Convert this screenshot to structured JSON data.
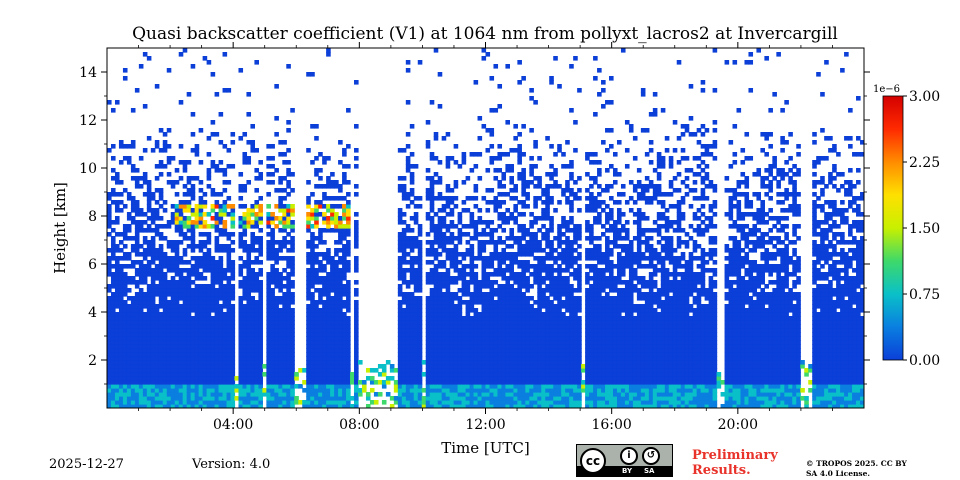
{
  "chart_data": {
    "type": "heatmap",
    "title": "Quasi backscatter coefficient (V1) at 1064 nm from pollyxt_lacros2 at Invercargill",
    "xlabel": "Time [UTC]",
    "ylabel": "Height [km]",
    "xlim_hours": [
      0,
      24
    ],
    "ylim_km": [
      0,
      15
    ],
    "x_ticks": [
      {
        "value": 4,
        "label": "04:00"
      },
      {
        "value": 8,
        "label": "08:00"
      },
      {
        "value": 12,
        "label": "12:00"
      },
      {
        "value": 16,
        "label": "16:00"
      },
      {
        "value": 20,
        "label": "20:00"
      }
    ],
    "y_ticks": [
      {
        "value": 2,
        "label": "2"
      },
      {
        "value": 4,
        "label": "4"
      },
      {
        "value": 6,
        "label": "6"
      },
      {
        "value": 8,
        "label": "8"
      },
      {
        "value": 10,
        "label": "10"
      },
      {
        "value": 12,
        "label": "12"
      },
      {
        "value": 14,
        "label": "14"
      }
    ],
    "colorbar": {
      "range": [
        0,
        3.0
      ],
      "exponent_label": "1e−6",
      "ticks": [
        {
          "value": 0.0,
          "label": "0.00"
        },
        {
          "value": 0.75,
          "label": "0.75"
        },
        {
          "value": 1.5,
          "label": "1.50"
        },
        {
          "value": 2.25,
          "label": "2.25"
        },
        {
          "value": 3.0,
          "label": "3.00"
        }
      ],
      "colors": [
        "#0b3fd8",
        "#0a7fe0",
        "#0ac0c8",
        "#3ed96a",
        "#c8f000",
        "#ffe000",
        "#ff8c00",
        "#ff2a00",
        "#d40000"
      ]
    },
    "gaps_hours": [
      {
        "start": 4.0,
        "end": 4.2
      },
      {
        "start": 4.9,
        "end": 5.05
      },
      {
        "start": 5.5,
        "end": 5.6
      },
      {
        "start": 5.95,
        "end": 6.3
      },
      {
        "start": 7.7,
        "end": 7.85
      },
      {
        "start": 7.95,
        "end": 9.2
      },
      {
        "start": 9.95,
        "end": 10.15
      },
      {
        "start": 15.0,
        "end": 15.12
      },
      {
        "start": 19.3,
        "end": 19.55
      },
      {
        "start": 21.95,
        "end": 22.35
      }
    ],
    "aerosol_layer": {
      "height_km": 8.0,
      "start_hour": 2.1,
      "end_hour": 7.8,
      "peak_value": 2.6
    },
    "boundary_layer_top_km": 3.8
  },
  "footer": {
    "date": "2025-12-27",
    "version": "Version: 4.0",
    "preliminary": "Preliminary Results.",
    "tropos": "© TROPOS 2025. CC BY SA 4.0 License.",
    "cc_label_by": "BY",
    "cc_label_sa": "SA"
  },
  "icons": [
    "creative-commons-icon",
    "attribution-icon",
    "share-alike-icon"
  ]
}
